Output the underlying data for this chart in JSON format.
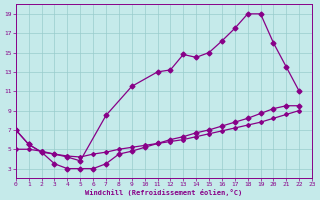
{
  "xlabel": "Windchill (Refroidissement éolien,°C)",
  "xlim": [
    0,
    23
  ],
  "ylim": [
    2,
    20
  ],
  "xticks": [
    0,
    1,
    2,
    3,
    4,
    5,
    6,
    7,
    8,
    9,
    10,
    11,
    12,
    13,
    14,
    15,
    16,
    17,
    18,
    19,
    20,
    21,
    22,
    23
  ],
  "yticks": [
    3,
    5,
    7,
    9,
    11,
    13,
    15,
    17,
    19
  ],
  "bg_color": "#c5eaea",
  "line_color": "#880088",
  "grid_color": "#99cccc",
  "upper_x": [
    0,
    1,
    2,
    3,
    4,
    5,
    7,
    9,
    11,
    12,
    13,
    14,
    15,
    16,
    17,
    18,
    19,
    20,
    21,
    22
  ],
  "upper_y": [
    7.0,
    5.5,
    4.7,
    4.5,
    4.2,
    3.8,
    8.5,
    11.5,
    13.0,
    13.2,
    14.8,
    14.5,
    15.0,
    16.2,
    17.5,
    19.0,
    19.0,
    16.0,
    13.5,
    11.0
  ],
  "mid_x": [
    0,
    1,
    2,
    3,
    4,
    5,
    6,
    7,
    8,
    9,
    10,
    11,
    12,
    13,
    14,
    15,
    16,
    17,
    18,
    19,
    20,
    21,
    22
  ],
  "mid_y": [
    5.0,
    5.0,
    4.8,
    4.5,
    4.3,
    4.2,
    4.5,
    4.7,
    5.0,
    5.2,
    5.4,
    5.6,
    5.8,
    6.0,
    6.3,
    6.6,
    6.9,
    7.2,
    7.5,
    7.8,
    8.2,
    8.6,
    9.0
  ],
  "low_x": [
    0,
    1,
    2,
    3,
    4,
    5,
    6,
    7,
    8,
    9,
    10,
    11,
    12,
    13,
    14,
    15,
    16,
    17,
    18,
    19,
    20,
    21,
    22
  ],
  "low_y": [
    7.0,
    5.5,
    4.7,
    3.5,
    3.0,
    3.0,
    3.0,
    3.5,
    4.5,
    4.8,
    5.2,
    5.6,
    6.0,
    6.3,
    6.7,
    7.0,
    7.4,
    7.8,
    8.2,
    8.7,
    9.2,
    9.5,
    9.5
  ]
}
